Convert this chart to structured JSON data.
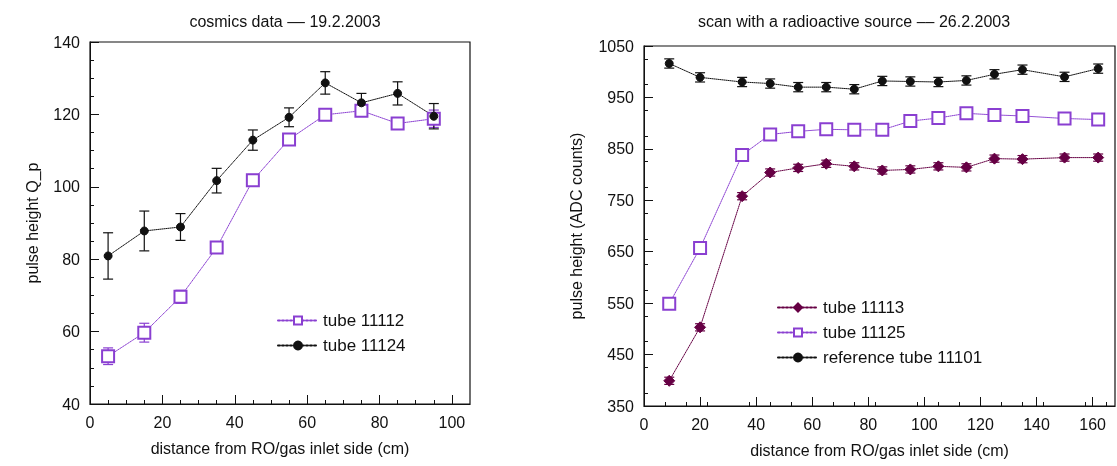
{
  "chart_data": [
    {
      "type": "line",
      "title": "cosmics data –– 19.2.2003",
      "xlabel": "distance from RO/gas inlet side (cm)",
      "ylabel": "pulse height Q_p",
      "x": [
        5,
        15,
        25,
        35,
        45,
        55,
        65,
        75,
        85,
        95
      ],
      "series": [
        {
          "name": "tube 11112",
          "color": "#8a3fd1",
          "marker": "square",
          "values": [
            53.2,
            59.7,
            69.6,
            83.2,
            101.8,
            113.1,
            119.9,
            121.0,
            117.5,
            118.8
          ],
          "errors": [
            2.3,
            2.6,
            1.8,
            1.6,
            1.6,
            1.5,
            1.5,
            1.5,
            1.6,
            2.4
          ]
        },
        {
          "name": "tube 11124",
          "color": "#111111",
          "marker": "circle",
          "values": [
            80.9,
            87.8,
            88.9,
            101.7,
            112.9,
            119.2,
            128.7,
            123.2,
            125.8,
            119.5
          ],
          "errors": [
            6.4,
            5.5,
            3.7,
            3.4,
            2.8,
            2.6,
            3.1,
            2.6,
            3.2,
            3.5
          ]
        }
      ],
      "xlim": [
        0,
        105
      ],
      "xticks": [
        0,
        20,
        40,
        60,
        80,
        100
      ],
      "ylim": [
        40,
        140
      ],
      "yticks": [
        40,
        60,
        80,
        100,
        120,
        140
      ],
      "grid": false,
      "legend": "bottom right",
      "line_style": "dotted"
    },
    {
      "type": "line",
      "title": "scan with a radioactive source –– 26.2.2003",
      "xlabel": "distance from RO/gas inlet side (cm)",
      "ylabel": "pulse height (ADC counts)",
      "x": [
        9,
        20,
        35,
        45,
        55,
        65,
        75,
        85,
        95,
        105,
        115,
        125,
        135,
        150,
        162
      ],
      "series": [
        {
          "name": "tube 11113",
          "color": "#660044",
          "marker": "diamond",
          "values": [
            399,
            503,
            758,
            804,
            813,
            821,
            816,
            808,
            810,
            816,
            814,
            831,
            830,
            833,
            833
          ],
          "errors": [
            7,
            7,
            7,
            7,
            7,
            7,
            7,
            7,
            7,
            7,
            7,
            7,
            7,
            7,
            7
          ]
        },
        {
          "name": "tube 11125",
          "color": "#8a3fd1",
          "marker": "square",
          "values": [
            549,
            657,
            838,
            878,
            884,
            888,
            887,
            887,
            904,
            910,
            919,
            916,
            914,
            909,
            907
          ],
          "errors": [
            7,
            7,
            7,
            7,
            7,
            7,
            7,
            7,
            7,
            7,
            7,
            7,
            7,
            7,
            7
          ]
        },
        {
          "name": "reference tube 11101",
          "color": "#111111",
          "marker": "circle",
          "values": [
            1016,
            989,
            980,
            977,
            970,
            970,
            966,
            982,
            981,
            980,
            983,
            995,
            1004,
            990,
            1006
          ],
          "errors": [
            9,
            9,
            9,
            9,
            9,
            9,
            9,
            9,
            9,
            9,
            9,
            9,
            9,
            9,
            9
          ]
        }
      ],
      "xlim": [
        0,
        168
      ],
      "xticks": [
        0,
        20,
        40,
        60,
        80,
        100,
        120,
        140,
        160
      ],
      "ylim": [
        350,
        1050
      ],
      "yticks": [
        350,
        450,
        550,
        650,
        750,
        850,
        950,
        1050
      ],
      "grid": false,
      "legend": "bottom right",
      "line_style": "dotted"
    }
  ]
}
